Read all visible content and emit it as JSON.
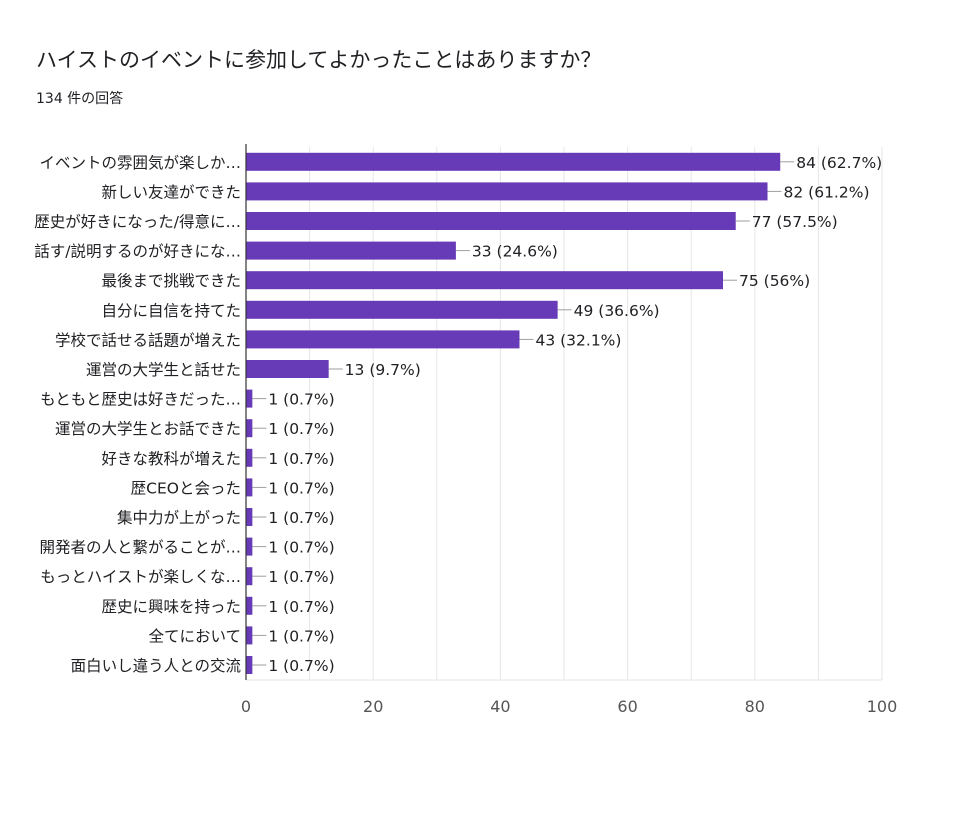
{
  "header": {
    "title": "ハイストのイベントに参加してよかったことはありますか？",
    "subtitle": "134 件の回答"
  },
  "colors": {
    "bar": "#673AB7",
    "grid": "#E6E6E6",
    "axis": "#333333",
    "leader": "#9E9E9E"
  },
  "chart_data": {
    "type": "bar",
    "orientation": "horizontal",
    "title": "ハイストのイベントに参加してよかったことはありますか？",
    "subtitle": "134 件の回答",
    "categories": [
      "イベントの雰囲気が楽しか…",
      "新しい友達ができた",
      "歴史が好きになった/得意に…",
      "話す/説明するのが好きにな…",
      "最後まで挑戦できた",
      "自分に自信を持てた",
      "学校で話せる話題が増えた",
      "運営の大学生と話せた",
      "もともと歴史は好きだった…",
      "運営の大学生とお話できた",
      "好きな教科が増えた",
      "歴CEOと会った",
      "集中力が上がった",
      "開発者の人と繋がることが…",
      "もっとハイストが楽しくな…",
      "歴史に興味を持った",
      "全てにおいて",
      "面白いし違う人との交流"
    ],
    "values": [
      84,
      82,
      77,
      33,
      75,
      49,
      43,
      13,
      1,
      1,
      1,
      1,
      1,
      1,
      1,
      1,
      1,
      1
    ],
    "data_labels": [
      "84 (62.7%)",
      "82 (61.2%)",
      "77 (57.5%)",
      "33 (24.6%)",
      "75 (56%)",
      "49 (36.6%)",
      "43 (32.1%)",
      "13 (9.7%)",
      "1 (0.7%)",
      "1 (0.7%)",
      "1 (0.7%)",
      "1 (0.7%)",
      "1 (0.7%)",
      "1 (0.7%)",
      "1 (0.7%)",
      "1 (0.7%)",
      "1 (0.7%)",
      "1 (0.7%)"
    ],
    "xlim": [
      0,
      100
    ],
    "xticks": [
      "0",
      "20",
      "40",
      "60",
      "80",
      "100"
    ],
    "grid": true,
    "legend": "none"
  }
}
